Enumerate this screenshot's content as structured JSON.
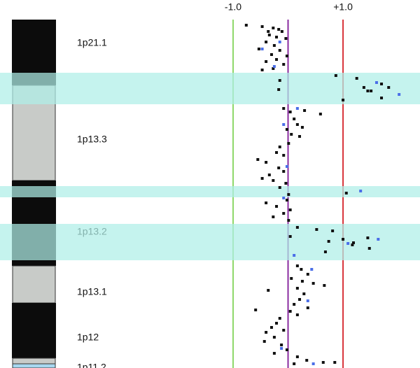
{
  "chart_data": {
    "type": "scatter",
    "xlim": [
      -1.42,
      2.4
    ],
    "xticks": [
      {
        "value": -1,
        "label": "-1.0"
      },
      {
        "value": 1,
        "label": "+1.0"
      }
    ],
    "tick_colors": [
      "#8fd86a",
      "#d9343a"
    ],
    "reference_line": {
      "value": 0,
      "color": "#8a2ca0"
    },
    "ylim": [
      0,
      526
    ],
    "ideogram": [
      {
        "start": 28,
        "end": 122,
        "color": "#0c0c0c"
      },
      {
        "start": 122,
        "end": 258,
        "color": "#c8cbc8"
      },
      {
        "start": 258,
        "end": 380,
        "color": "#0c0c0c"
      },
      {
        "start": 380,
        "end": 433,
        "color": "#c8cbc8"
      },
      {
        "start": 433,
        "end": 512,
        "color": "#0c0c0c"
      },
      {
        "start": 512,
        "end": 520,
        "color": "#c8cbc8"
      },
      {
        "start": 520,
        "end": 526,
        "color": "#a8d8f0"
      }
    ],
    "highlights": [
      {
        "start": 104,
        "end": 149
      },
      {
        "start": 266,
        "end": 282
      },
      {
        "start": 320,
        "end": 372
      }
    ],
    "band_labels": [
      {
        "label": "1p21.1",
        "y": 62
      },
      {
        "label": "1p13.3",
        "y": 200
      },
      {
        "label": "1p13.2",
        "y": 332
      },
      {
        "label": "1p13.1",
        "y": 418
      },
      {
        "label": "1p12",
        "y": 483
      },
      {
        "label": "1p11.2",
        "y": 526
      }
    ],
    "series": [
      {
        "color": "#111111",
        "x": [
          -0.76,
          -0.47,
          -0.27,
          -0.17,
          -0.11,
          -0.34,
          -0.21,
          -0.04,
          -0.4,
          -0.25,
          -0.53,
          -0.15,
          -0.3,
          -0.21,
          -0.4,
          -0.08,
          -0.47,
          -0.27,
          -0.02,
          -0.36,
          0.87,
          1.25,
          1.38,
          1.51,
          1.7,
          1.83,
          -0.15,
          -0.17,
          1.0,
          1.7,
          1.45,
          -0.08,
          0.04,
          0.3,
          0.59,
          0.11,
          0.17,
          0.26,
          -0.02,
          0.06,
          0.21,
          0.01,
          -0.15,
          -0.21,
          -0.08,
          -0.55,
          -0.4,
          -0.17,
          -0.08,
          -0.47,
          -0.27,
          -0.04,
          -0.34,
          -0.15,
          1.06,
          0.01,
          -0.02,
          -0.4,
          -0.21,
          0.04,
          -0.08,
          -0.27,
          0.01,
          0.17,
          0.52,
          0.81,
          0.04,
          0.74,
          1.17,
          1.45,
          1.0,
          0.68,
          1.19,
          1.48,
          0.17,
          0.24,
          0.36,
          0.06,
          0.26,
          0.46,
          0.66,
          0.17,
          0.29,
          -0.36,
          0.21,
          0.11,
          0.36,
          -0.59,
          0.04,
          0.17,
          -0.15,
          -0.21,
          -0.3,
          -0.08,
          -0.4,
          -0.25,
          -0.43,
          -0.12,
          -0.02,
          -0.25,
          0.17,
          0.34,
          0.64,
          0.85,
          0.11
        ],
        "values": [
          36,
          38,
          40,
          42,
          45,
          50,
          53,
          55,
          60,
          65,
          70,
          72,
          78,
          85,
          88,
          92,
          100,
          98,
          80,
          45,
          108,
          112,
          125,
          130,
          120,
          125,
          115,
          128,
          143,
          140,
          130,
          155,
          160,
          158,
          163,
          170,
          178,
          182,
          185,
          192,
          195,
          205,
          210,
          218,
          222,
          228,
          232,
          240,
          245,
          255,
          258,
          262,
          250,
          268,
          276,
          278,
          286,
          290,
          295,
          300,
          305,
          310,
          315,
          325,
          328,
          330,
          338,
          345,
          350,
          340,
          342,
          360,
          347,
          355,
          380,
          385,
          392,
          398,
          402,
          405,
          408,
          412,
          420,
          415,
          428,
          435,
          440,
          443,
          445,
          450,
          455,
          462,
          468,
          472,
          475,
          482,
          488,
          493,
          500,
          505,
          510,
          515,
          518,
          518,
          520
        ]
      },
      {
        "color": "#4a6ee8",
        "x": [
          -0.47,
          -0.15,
          -0.25,
          1.61,
          2.02,
          0.17,
          -0.08,
          -0.02,
          1.32,
          -0.08,
          1.64,
          1.09,
          0.11,
          0.43,
          0.36,
          0.46,
          -0.12
        ],
        "values": [
          70,
          60,
          95,
          118,
          135,
          155,
          178,
          238,
          273,
          283,
          342,
          348,
          365,
          385,
          430,
          520,
          498
        ]
      }
    ]
  }
}
